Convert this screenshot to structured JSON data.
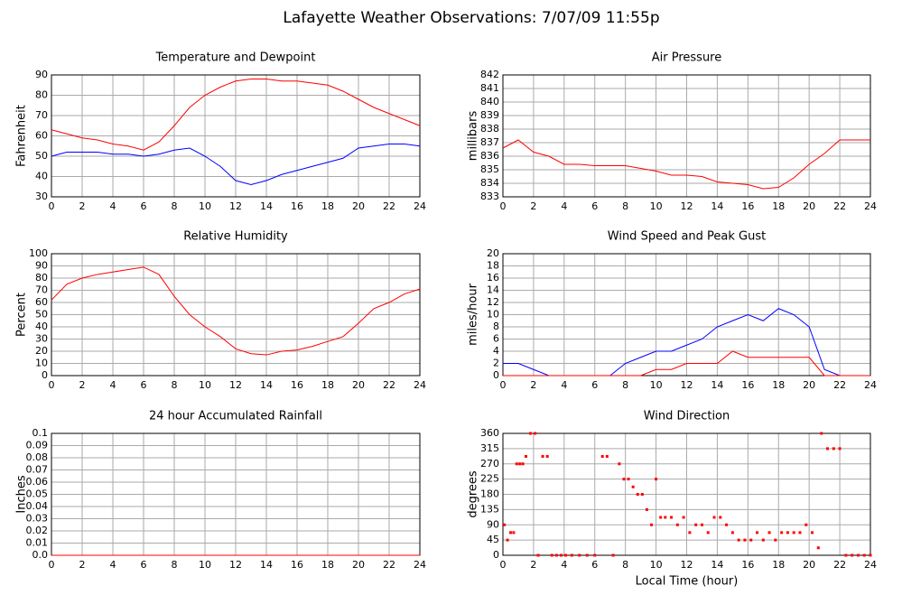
{
  "title": "Lafayette Weather Observations: 7/07/09 11:55p",
  "chart_data": [
    {
      "type": "line",
      "title": "Temperature and Dewpoint",
      "ylabel": "Fahrenheit",
      "x": [
        0,
        1,
        2,
        3,
        4,
        5,
        6,
        7,
        8,
        9,
        10,
        11,
        12,
        13,
        14,
        15,
        16,
        17,
        18,
        19,
        20,
        21,
        22,
        23,
        24
      ],
      "series": [
        {
          "color": "#ff0000",
          "values": [
            63,
            61,
            59,
            58,
            56,
            55,
            53,
            57,
            65,
            74,
            80,
            84,
            87,
            88,
            88,
            87,
            87,
            86,
            85,
            82,
            78,
            74,
            71,
            68,
            65
          ]
        },
        {
          "color": "#0000ff",
          "values": [
            50,
            52,
            52,
            52,
            51,
            51,
            50,
            51,
            53,
            54,
            50,
            45,
            38,
            36,
            38,
            41,
            43,
            45,
            47,
            49,
            54,
            55,
            56,
            56,
            55
          ]
        }
      ],
      "xlim": [
        0,
        24
      ],
      "xticks": [
        0,
        2,
        4,
        6,
        8,
        10,
        12,
        14,
        16,
        18,
        20,
        22,
        24
      ],
      "ylim": [
        30,
        90
      ],
      "yticks": [
        30,
        40,
        50,
        60,
        70,
        80,
        90
      ],
      "grid": true
    },
    {
      "type": "line",
      "title": "Air Pressure",
      "ylabel": "millibars",
      "x": [
        0,
        1,
        2,
        3,
        4,
        5,
        6,
        7,
        8,
        9,
        10,
        11,
        12,
        13,
        14,
        15,
        16,
        17,
        18,
        19,
        20,
        21,
        22,
        23,
        24
      ],
      "series": [
        {
          "color": "#ff0000",
          "values": [
            836.6,
            837.2,
            836.3,
            836.0,
            835.4,
            835.4,
            835.3,
            835.3,
            835.3,
            835.1,
            834.9,
            834.6,
            834.6,
            834.5,
            834.1,
            834.0,
            833.9,
            833.6,
            833.7,
            834.4,
            835.4,
            836.2,
            837.2,
            837.2,
            837.2
          ]
        }
      ],
      "xlim": [
        0,
        24
      ],
      "xticks": [
        0,
        2,
        4,
        6,
        8,
        10,
        12,
        14,
        16,
        18,
        20,
        22,
        24
      ],
      "ylim": [
        833,
        842
      ],
      "yticks": [
        833,
        834,
        835,
        836,
        837,
        838,
        839,
        840,
        841,
        842
      ],
      "grid": true
    },
    {
      "type": "line",
      "title": "Relative Humidity",
      "ylabel": "Percent",
      "x": [
        0,
        1,
        2,
        3,
        4,
        5,
        6,
        7,
        8,
        9,
        10,
        11,
        12,
        13,
        14,
        15,
        16,
        17,
        18,
        19,
        20,
        21,
        22,
        23,
        24
      ],
      "series": [
        {
          "color": "#ff0000",
          "values": [
            62,
            75,
            80,
            83,
            85,
            87,
            89,
            83,
            65,
            50,
            40,
            32,
            22,
            18,
            17,
            20,
            21,
            24,
            28,
            32,
            43,
            55,
            60,
            67,
            71
          ]
        }
      ],
      "xlim": [
        0,
        24
      ],
      "xticks": [
        0,
        2,
        4,
        6,
        8,
        10,
        12,
        14,
        16,
        18,
        20,
        22,
        24
      ],
      "ylim": [
        0,
        100
      ],
      "yticks": [
        0,
        10,
        20,
        30,
        40,
        50,
        60,
        70,
        80,
        90,
        100
      ],
      "grid": true
    },
    {
      "type": "line",
      "title": "Wind Speed and Peak Gust",
      "ylabel": "miles/hour",
      "x": [
        0,
        1,
        2,
        3,
        4,
        5,
        6,
        7,
        8,
        9,
        10,
        11,
        12,
        13,
        14,
        15,
        16,
        17,
        18,
        19,
        20,
        21,
        22,
        23,
        24
      ],
      "series": [
        {
          "color": "#0000ff",
          "values": [
            2,
            2,
            1,
            0,
            0,
            0,
            0,
            0,
            2,
            3,
            4,
            4,
            5,
            6,
            8,
            9,
            10,
            9,
            11,
            10,
            8,
            1,
            0,
            0,
            0
          ]
        },
        {
          "color": "#ff0000",
          "values": [
            0,
            0,
            0,
            0,
            0,
            0,
            0,
            0,
            0,
            0,
            1,
            1,
            2,
            2,
            2,
            4,
            3,
            3,
            3,
            3,
            3,
            0,
            0,
            0,
            0
          ]
        }
      ],
      "xlim": [
        0,
        24
      ],
      "xticks": [
        0,
        2,
        4,
        6,
        8,
        10,
        12,
        14,
        16,
        18,
        20,
        22,
        24
      ],
      "ylim": [
        0,
        20
      ],
      "yticks": [
        0,
        2,
        4,
        6,
        8,
        10,
        12,
        14,
        16,
        18,
        20
      ],
      "grid": true
    },
    {
      "type": "line",
      "title": "24 hour Accumulated Rainfall",
      "ylabel": "Inches",
      "x": [
        0,
        24
      ],
      "series": [
        {
          "color": "#ff0000",
          "values": [
            0,
            0
          ]
        }
      ],
      "xlim": [
        0,
        24
      ],
      "xticks": [
        0,
        2,
        4,
        6,
        8,
        10,
        12,
        14,
        16,
        18,
        20,
        22,
        24
      ],
      "ylim": [
        0,
        0.1
      ],
      "yticks": [
        {
          "value": 0,
          "label": "0.0"
        },
        0.01,
        0.02,
        0.03,
        0.04,
        0.05,
        0.06,
        0.07,
        0.08,
        0.09,
        0.1
      ],
      "grid": true
    },
    {
      "type": "scatter",
      "title": "Wind Direction",
      "ylabel": "degrees",
      "xlabel": "Local Time (hour)",
      "color": "#ff0000",
      "x": [
        0.1,
        0.3,
        0.5,
        0.7,
        0.9,
        1.1,
        1.3,
        1.5,
        1.8,
        2.1,
        2.3,
        2.6,
        2.9,
        3.2,
        3.5,
        3.8,
        4.1,
        4.5,
        5,
        5.5,
        6,
        6.5,
        6.8,
        7.2,
        7.6,
        7.9,
        8.2,
        8.5,
        8.8,
        9.1,
        9.4,
        9.7,
        10,
        10.3,
        10.6,
        11,
        11.4,
        11.8,
        12.2,
        12.6,
        13,
        13.4,
        13.8,
        14.2,
        14.6,
        15,
        15.4,
        15.8,
        16.2,
        16.6,
        17,
        17.4,
        17.8,
        18.2,
        18.6,
        19,
        19.4,
        19.8,
        20.2,
        20.6,
        20.8,
        21.2,
        21.6,
        22,
        22.4,
        22.8,
        23.2,
        23.6,
        24
      ],
      "values": [
        90,
        45,
        67,
        67,
        270,
        270,
        270,
        292,
        360,
        360,
        0,
        292,
        292,
        0,
        0,
        0,
        0,
        0,
        0,
        0,
        0,
        292,
        292,
        0,
        270,
        225,
        225,
        202,
        180,
        180,
        135,
        90,
        225,
        112,
        112,
        112,
        90,
        112,
        67,
        90,
        90,
        67,
        112,
        112,
        90,
        67,
        45,
        45,
        45,
        67,
        45,
        67,
        45,
        67,
        67,
        67,
        67,
        90,
        67,
        22,
        360,
        315,
        315,
        315,
        0,
        0,
        0,
        0,
        0
      ],
      "xlim": [
        0,
        24
      ],
      "xticks": [
        0,
        2,
        4,
        6,
        8,
        10,
        12,
        14,
        16,
        18,
        20,
        22,
        24
      ],
      "ylim": [
        0,
        360
      ],
      "yticks": [
        0,
        45,
        90,
        135,
        180,
        225,
        270,
        315,
        360
      ],
      "grid": true
    }
  ]
}
